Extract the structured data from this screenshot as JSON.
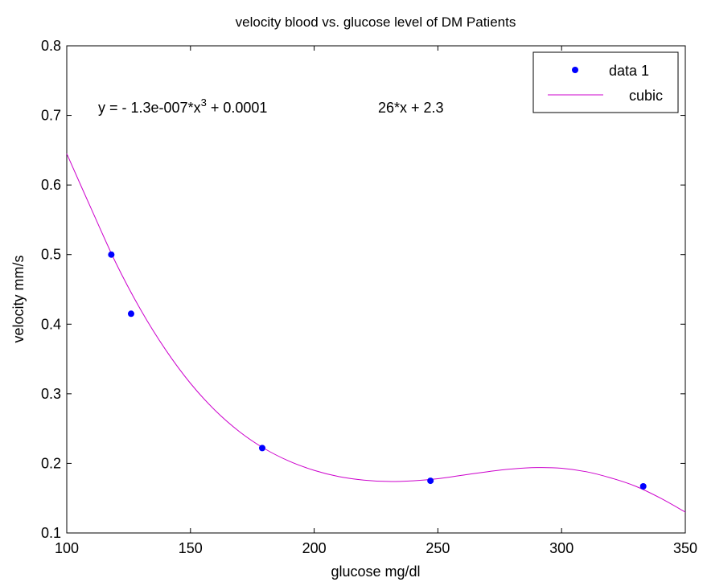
{
  "chart_data": {
    "type": "scatter",
    "title": "velocity blood vs. glucose level of DM Patients",
    "xlabel": "glucose mg/dl",
    "ylabel": "velocity mm/s",
    "xlim": [
      100,
      350
    ],
    "ylim": [
      0.1,
      0.8
    ],
    "xticks": [
      "100",
      "150",
      "200",
      "250",
      "300",
      "350"
    ],
    "yticks": [
      "0.1",
      "0.2",
      "0.3",
      "0.4",
      "0.5",
      "0.6",
      "0.7",
      "0.8"
    ],
    "grid": false,
    "legend_position": "top-right",
    "series": [
      {
        "name": "data 1",
        "kind": "markers",
        "color": "#0000ff",
        "x": [
          118,
          126,
          179,
          247,
          333
        ],
        "y": [
          0.5,
          0.415,
          0.222,
          0.175,
          0.167
        ]
      },
      {
        "name": "cubic",
        "kind": "line",
        "color": "#cc00cc",
        "x": [
          100,
          110,
          120,
          130,
          140,
          150,
          160,
          170,
          180,
          190,
          200,
          210,
          220,
          230,
          240,
          250,
          260,
          270,
          280,
          290,
          300,
          310,
          320,
          330,
          340,
          350
        ],
        "y": [
          0.645,
          0.565,
          0.487,
          0.42,
          0.363,
          0.315,
          0.276,
          0.245,
          0.221,
          0.203,
          0.19,
          0.181,
          0.176,
          0.174,
          0.175,
          0.178,
          0.183,
          0.188,
          0.192,
          0.194,
          0.193,
          0.188,
          0.179,
          0.167,
          0.15,
          0.13
        ]
      }
    ],
    "annotation": {
      "text_before": "y = - 1.3e-007*x",
      "superscript": "3",
      "text_middle": " + 0.0001",
      "text_after": "26*x + 2.3"
    }
  }
}
